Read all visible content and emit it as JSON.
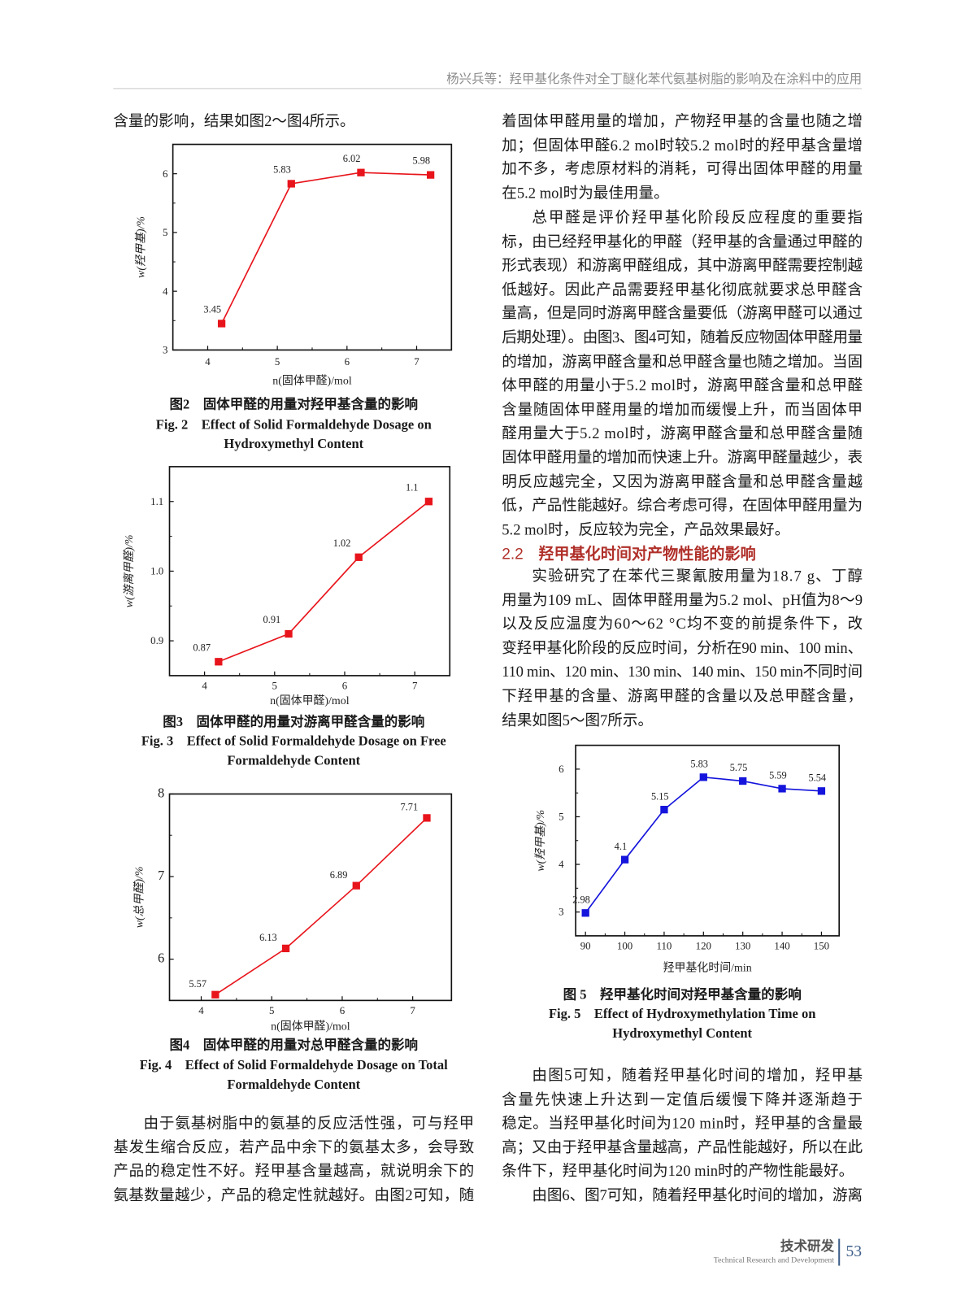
{
  "header": {
    "running_title": "杨兴兵等：羟甲基化条件对全丁醚化苯代氨基树脂的影响及在涂料中的应用"
  },
  "left_column": {
    "top_lines": [
      "含量的影响，结果如图2～图4所示。"
    ],
    "bottom_paragraph": [
      "由于氨基树脂中的氨基的反应活性强，可与羟甲",
      "基发生缩合反应，若产品中余下的氨基太多，会导致",
      "产品的稳定性不好。羟甲基含量越高，就说明余下的",
      "氨基数量越少，产品的稳定性就越好。由图2可知，随"
    ]
  },
  "right_column": {
    "para1": [
      "着固体甲醛用量的增加，产物羟甲基的含量也随之增",
      "加；但固体甲醛6.2 mol时较5.2 mol时的羟甲基含量增",
      "加不多，考虑原材料的消耗，可得出固体甲醛的用量",
      "在5.2 mol时为最佳用量。"
    ],
    "para2": [
      "总甲醛是评价羟甲基化阶段反应程度的重要指",
      "标，由已经羟甲基化的甲醛（羟甲基的含量通过甲醛的",
      "形式表现）和游离甲醛组成，其中游离甲醛需要控制越",
      "低越好。因此产品需要羟甲基化彻底就要求总甲醛含",
      "量高，但是同时游离甲醛含量要低（游离甲醛可以通过",
      "后期处理）。由图3、图4可知，随着反应物固体甲醛用量",
      "的增加，游离甲醛含量和总甲醛含量也随之增加。当固",
      "体甲醛的用量小于5.2 mol时，游离甲醛含量和总甲醛",
      "含量随固体甲醛用量的增加而缓慢上升，而当固体甲",
      "醛用量大于5.2 mol时，游离甲醛含量和总甲醛含量随",
      "固体甲醛用量的增加而快速上升。游离甲醛量越少，表",
      "明反应越完全，又因为游离甲醛含量和总甲醛含量越",
      "低，产品性能越好。综合考虑可得，在固体甲醛用量为",
      "5.2 mol时，反应较为完全，产品效果最好。"
    ],
    "section_heading": {
      "number": "2.2",
      "title": "羟甲基化时间对产物性能的影响",
      "color": "#b0302a"
    },
    "para3": [
      "实验研究了在苯代三聚氰胺用量为18.7 g、丁醇",
      "用量为109 mL、固体甲醛用量为5.2 mol、pH值为8～9",
      "以及反应温度为60～62 °C均不变的前提条件下，改",
      "变羟甲基化阶段的反应时间，分析在90 min、100 min、",
      "110 min、120 min、130 min、140 min、150 min不同时间",
      "下羟甲基的含量、游离甲醛的含量以及总甲醛含量，",
      "结果如图5～图7所示。"
    ],
    "para4": [
      "由图5可知，随着羟甲基化时间的增加，羟甲基",
      "含量先快速上升达到一定值后缓慢下降并逐渐趋于",
      "稳定。当羟甲基化时间为120 min时，羟甲基的含量最",
      "高；又由于羟甲基含量越高，产品性能越好，所以在此",
      "条件下，羟甲基化时间为120 min时的产物性能最好。"
    ],
    "para5": [
      "由图6、图7可知，随着羟甲基化时间的增加，游离"
    ]
  },
  "captions": {
    "fig2": [
      "图2　固体甲醛的用量对羟甲基含量的影响",
      "Fig. 2　Effect of Solid Formaldehyde Dosage on",
      "Hydroxymethyl Content"
    ],
    "fig3": [
      "图3　固体甲醛的用量对游离甲醛含量的影响",
      "Fig. 3　Effect of Solid Formaldehyde Dosage on Free",
      "Formaldehyde Content"
    ],
    "fig4": [
      "图4　固体甲醛的用量对总甲醛含量的影响",
      "Fig. 4　Effect of Solid Formaldehyde Dosage on Total",
      "Formaldehyde Content"
    ],
    "fig5": [
      "图 5　羟甲基化时间对羟甲基含量的影响",
      "Fig. 5　Effect of Hydroxymethylation Time on",
      "Hydroxymethyl Content"
    ]
  },
  "chart_data": [
    {
      "id": "fig2",
      "type": "line",
      "x": [
        4.2,
        5.2,
        6.2,
        7.2
      ],
      "y": [
        3.45,
        5.83,
        6.02,
        5.98
      ],
      "data_labels": [
        "3.45",
        "5.83",
        "6.02",
        "5.98"
      ],
      "xlabel": "n(固体甲醛)/mol",
      "ylabel": "w(羟甲基)/%",
      "xticks": [
        4,
        5,
        6,
        7
      ],
      "xtick_labels": [
        "4",
        "5",
        "6",
        "7"
      ],
      "yticks": [
        3,
        4,
        5,
        6
      ],
      "ytick_labels": [
        "3",
        "4",
        "5",
        "6"
      ],
      "xlim": [
        3.5,
        7.5
      ],
      "ylim": [
        3,
        6.5
      ],
      "marker": "square",
      "color": "#e8141b",
      "grid": false
    },
    {
      "id": "fig3",
      "type": "line",
      "x": [
        4.2,
        5.2,
        6.2,
        7.2
      ],
      "y": [
        0.87,
        0.91,
        1.02,
        1.1
      ],
      "data_labels": [
        "0.87",
        "0.91",
        "1.02",
        "1.1"
      ],
      "xlabel": "n(固体甲醛)/mol",
      "ylabel": "w(游离甲醛)/%",
      "xticks": [
        4,
        5,
        6,
        7
      ],
      "xtick_labels": [
        "4",
        "5",
        "6",
        "7"
      ],
      "yticks": [
        0.9,
        1.0,
        1.1
      ],
      "ytick_labels": [
        "0.9",
        "1.0",
        "1.1"
      ],
      "xlim": [
        3.5,
        7.5
      ],
      "ylim": [
        0.85,
        1.15
      ],
      "marker": "square",
      "color": "#e8141b",
      "grid": false
    },
    {
      "id": "fig4",
      "type": "line",
      "x": [
        4.2,
        5.2,
        6.2,
        7.2
      ],
      "y": [
        5.57,
        6.13,
        6.89,
        7.71
      ],
      "data_labels": [
        "5.57",
        "6.13",
        "6.89",
        "7.71"
      ],
      "xlabel": "n(固体甲醛)/mol",
      "ylabel": "w(总甲醛)/%",
      "xticks": [
        4,
        5,
        6,
        7
      ],
      "xtick_labels": [
        "4",
        "5",
        "6",
        "7"
      ],
      "yticks": [
        6,
        7,
        8
      ],
      "ytick_labels": [
        "6",
        "7",
        "8"
      ],
      "xlim": [
        3.55,
        7.55
      ],
      "ylim": [
        5.5,
        8
      ],
      "marker": "square",
      "color": "#e8141b",
      "grid": false
    },
    {
      "id": "fig5",
      "type": "line",
      "x": [
        90,
        100,
        110,
        120,
        130,
        140,
        150
      ],
      "y": [
        2.98,
        4.1,
        5.15,
        5.83,
        5.75,
        5.59,
        5.54
      ],
      "data_labels": [
        "2.98",
        "4.1",
        "5.15",
        "5.83",
        "5.75",
        "5.59",
        "5.54"
      ],
      "xlabel": "羟甲基化时间/min",
      "ylabel": "w(羟甲基)/%",
      "xticks": [
        90,
        100,
        110,
        120,
        130,
        140,
        150
      ],
      "xtick_labels": [
        "90",
        "100",
        "110",
        "120",
        "130",
        "140",
        "150"
      ],
      "yticks": [
        3,
        4,
        5,
        6
      ],
      "ytick_labels": [
        "3",
        "4",
        "5",
        "6"
      ],
      "xlim": [
        87.5,
        154.5
      ],
      "ylim": [
        2.5,
        6.5
      ],
      "marker": "square",
      "color": "#1414dc",
      "grid": false
    }
  ],
  "footer": {
    "section_cn": "技术研发",
    "section_en": "Technical Research and Development",
    "page_number": "53",
    "accent": "#3f5f8a"
  }
}
